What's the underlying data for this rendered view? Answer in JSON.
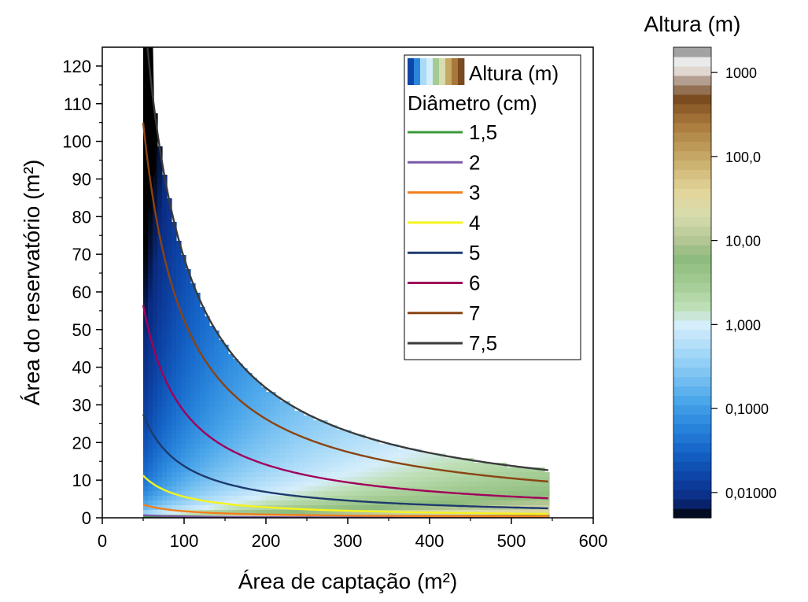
{
  "chart_data": {
    "type": "contour",
    "xlabel": "Área de captação (m²)",
    "ylabel": "Área do reservatório (m²)",
    "xlim": [
      0,
      600
    ],
    "ylim": [
      0,
      125
    ],
    "xticks": [
      "0",
      "100",
      "200",
      "300",
      "400",
      "500",
      "600"
    ],
    "yticks": [
      "0",
      "10",
      "20",
      "30",
      "40",
      "50",
      "60",
      "70",
      "80",
      "90",
      "100",
      "110",
      "120"
    ],
    "x_range_data": [
      50,
      545
    ],
    "fill_variable": "Altura (m)",
    "series": [
      {
        "name": "1,5",
        "color": "#3a9a3a",
        "x": [
          50,
          545
        ],
        "y": [
          0.2,
          0.02
        ]
      },
      {
        "name": "2",
        "color": "#7a5aa8",
        "x": [
          50,
          545
        ],
        "y": [
          0.7,
          0.06
        ]
      },
      {
        "name": "3",
        "color": "#f07f1e",
        "x": [
          50,
          545
        ],
        "y": [
          3.5,
          0.33
        ]
      },
      {
        "name": "4",
        "color": "#f4f41e",
        "x": [
          50,
          545
        ],
        "y": [
          11.2,
          1.0
        ]
      },
      {
        "name": "5",
        "color": "#1e3a6e",
        "x": [
          50,
          545
        ],
        "y": [
          27.5,
          2.5
        ]
      },
      {
        "name": "6",
        "color": "#a0005a",
        "x": [
          50,
          545
        ],
        "y": [
          56.5,
          5.2
        ]
      },
      {
        "name": "7",
        "color": "#8a4414",
        "x": [
          50,
          545
        ],
        "y": [
          105,
          9.6
        ]
      },
      {
        "name": "7,5",
        "color": "#3a3a3a",
        "x": [
          50,
          545
        ],
        "y": [
          138,
          12.6
        ]
      }
    ],
    "legend": {
      "fill_label": "Altura (m)",
      "title": "Diâmetro (cm)",
      "position": "top-right"
    },
    "colorbar": {
      "title": "Altura (m)",
      "scale": "log",
      "range": [
        0.005,
        2000
      ],
      "ticks": [
        "1000",
        "100,0",
        "10,00",
        "1,000",
        "0,1000",
        "0,01000"
      ]
    }
  }
}
